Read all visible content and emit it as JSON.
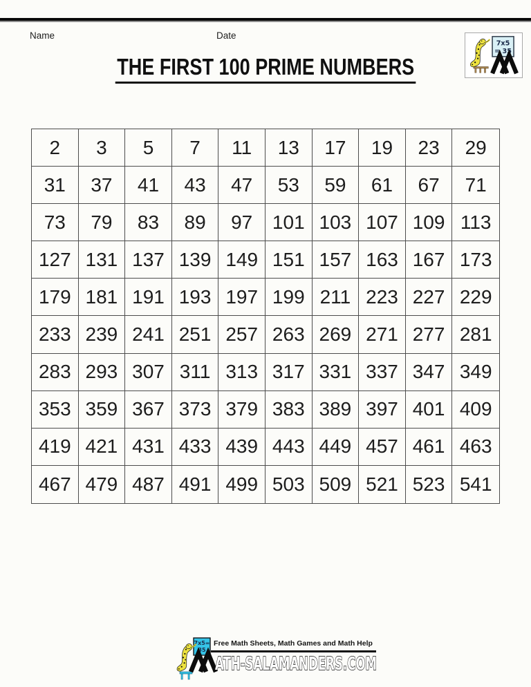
{
  "document": {
    "name_label": "Name",
    "date_label": "Date",
    "title": "THE FIRST 100 PRIME NUMBERS"
  },
  "header_logo": {
    "board_line1": "7x5",
    "board_line2": "= 35"
  },
  "table": {
    "rows": [
      [
        2,
        3,
        5,
        7,
        11,
        13,
        17,
        19,
        23,
        29
      ],
      [
        31,
        37,
        41,
        43,
        47,
        53,
        59,
        61,
        67,
        71
      ],
      [
        73,
        79,
        83,
        89,
        97,
        101,
        103,
        107,
        109,
        113
      ],
      [
        127,
        131,
        137,
        139,
        149,
        151,
        157,
        163,
        167,
        173
      ],
      [
        179,
        181,
        191,
        193,
        197,
        199,
        211,
        223,
        227,
        229
      ],
      [
        233,
        239,
        241,
        251,
        257,
        263,
        269,
        271,
        277,
        281
      ],
      [
        283,
        293,
        307,
        311,
        313,
        317,
        331,
        337,
        347,
        349
      ],
      [
        353,
        359,
        367,
        373,
        379,
        383,
        389,
        397,
        401,
        409
      ],
      [
        419,
        421,
        431,
        433,
        439,
        443,
        449,
        457,
        461,
        463
      ],
      [
        467,
        479,
        487,
        491,
        499,
        503,
        509,
        521,
        523,
        541
      ]
    ]
  },
  "footer": {
    "tagline": "Free Math Sheets, Math Games and Math Help",
    "wordmark": "ATH-SALAMANDERS.COM",
    "board_line1": "7x5=",
    "board_line2": "35"
  },
  "colors": {
    "salamander_yellow": "#ede23f",
    "board_cyan": "#35c4e8",
    "board_pale": "#d9f0f6",
    "top_bar_black": "#0a0a0a",
    "top_bar_gray": "#8f8f8f",
    "table_border": "#4c4c4c",
    "text": "#1d1d1d",
    "background": "#fcfcf9"
  }
}
